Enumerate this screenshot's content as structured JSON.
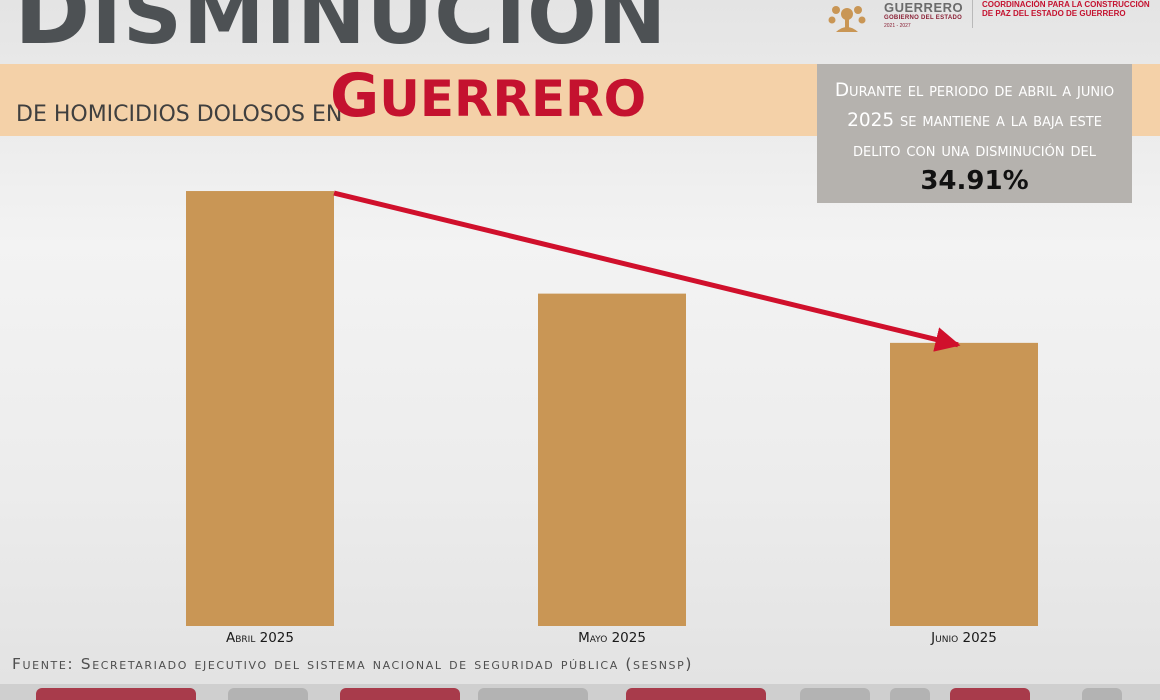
{
  "header": {
    "title_first": "D",
    "title_rest": "ISMINUCIÓN",
    "subtitle_small": "DE HOMICIDIOS DOLOSOS EN",
    "state_first": "G",
    "state_rest": "UERRERO"
  },
  "logo": {
    "name": "GUERRERO",
    "sub": "GOBIERNO DEL ESTADO",
    "years": "2021 - 2027",
    "office": "COORDINACIÓN PARA LA CONSTRUCCIÓN DE PAZ DEL ESTADO DE GUERRERO"
  },
  "info_box": {
    "text": "Durante el periodo de abril a junio 2025 se mantiene a la baja este delito con una disminución del",
    "percent": "34.91%"
  },
  "source": "Fuente: Secretariado ejecutivo del sistema nacional de seguridad pública (sesnsp)",
  "colors": {
    "bar": "#c99655",
    "arrow": "#d0102c",
    "title": "#4d5154",
    "accent": "#c4122f",
    "band": "#f4d1a8",
    "info_box": "#b5b2ae"
  },
  "chart_data": {
    "type": "bar",
    "categories": [
      "Abril 2025",
      "Mayo 2025",
      "Junio 2025"
    ],
    "values": [
      106,
      81,
      69
    ],
    "ylim": [
      0,
      116
    ],
    "grid": false,
    "legend": "none",
    "annotation": "arrow from first bar to last bar indicating decline"
  }
}
